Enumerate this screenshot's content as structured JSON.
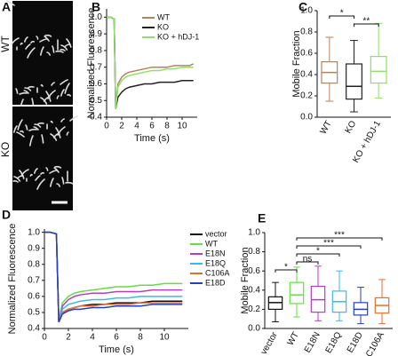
{
  "chart_data": [
    {
      "type": "image",
      "panel": "A",
      "labels": [
        "WT",
        "KO"
      ]
    },
    {
      "type": "line",
      "panel": "B",
      "x_label": "Time (s)",
      "y_label": "Normalized  Fluorescence",
      "x": [
        0,
        0.5,
        1,
        1.2,
        1.5,
        2,
        2.5,
        3,
        4,
        5,
        6,
        7,
        8,
        9,
        10,
        11,
        11.5
      ],
      "xlim": [
        0,
        12
      ],
      "xticks": [
        0,
        2,
        4,
        6,
        8,
        10
      ],
      "ylim": [
        0.4,
        1.05
      ],
      "yticks": [
        0.4,
        0.5,
        0.6,
        0.7,
        0.8,
        0.9,
        {
          "value": 1,
          "label": "1.0"
        }
      ],
      "legend": "upper right",
      "series": [
        {
          "name": "WT",
          "color": "#b5835a",
          "values": [
            1,
            1,
            0.99,
            0.45,
            0.6,
            0.64,
            0.66,
            0.67,
            0.68,
            0.69,
            0.7,
            0.7,
            0.7,
            0.71,
            0.71,
            0.71,
            0.72
          ]
        },
        {
          "name": "KO",
          "color": "#222222",
          "values": [
            1,
            1,
            0.99,
            0.45,
            0.52,
            0.55,
            0.57,
            0.58,
            0.59,
            0.6,
            0.6,
            0.61,
            0.61,
            0.61,
            0.62,
            0.62,
            0.62
          ]
        },
        {
          "name": "KO + hDJ-1",
          "color": "#8ee06a",
          "values": [
            1,
            1,
            0.99,
            0.45,
            0.58,
            0.62,
            0.64,
            0.65,
            0.66,
            0.67,
            0.68,
            0.68,
            0.69,
            0.69,
            0.7,
            0.7,
            0.7
          ]
        }
      ]
    },
    {
      "type": "box",
      "panel": "C",
      "y_label": "Mobile  Fraction",
      "categories": [
        "WT",
        "KO",
        "KO + hDJ-1"
      ],
      "colors": [
        "#b5835a",
        "#222222",
        "#8ee06a"
      ],
      "ylim": [
        0,
        1
      ],
      "yticks": [
        {
          "value": 0,
          "label": "0.0"
        },
        0.2,
        0.4,
        0.6,
        0.8,
        {
          "value": 1,
          "label": "1.0"
        }
      ],
      "boxes": [
        {
          "low": 0.15,
          "q1": 0.32,
          "median": 0.42,
          "q3": 0.52,
          "high": 0.75
        },
        {
          "low": 0.05,
          "q1": 0.17,
          "median": 0.29,
          "q3": 0.5,
          "high": 0.72
        },
        {
          "low": 0.18,
          "q1": 0.32,
          "median": 0.43,
          "q3": 0.57,
          "high": 0.88
        }
      ],
      "significance": [
        {
          "pair": [
            "WT",
            "KO"
          ],
          "label": "*"
        },
        {
          "pair": [
            "KO",
            "KO + hDJ-1"
          ],
          "label": "**"
        }
      ]
    },
    {
      "type": "line",
      "panel": "D",
      "x_label": "Time (s)",
      "y_label": "Normalized Fluorescence",
      "x": [
        0,
        0.5,
        1,
        1.2,
        1.5,
        2,
        2.5,
        3,
        4,
        5,
        6,
        7,
        8,
        9,
        10,
        11,
        11.5
      ],
      "xlim": [
        0,
        12
      ],
      "xticks": [
        0,
        2,
        4,
        6,
        8,
        10
      ],
      "ylim": [
        0.4,
        1.02
      ],
      "yticks": [
        0.4,
        0.5,
        0.6,
        0.7,
        0.8,
        0.9,
        {
          "value": 1,
          "label": "1.0"
        }
      ],
      "legend": "right",
      "series": [
        {
          "name": "vector",
          "color": "#111111",
          "values": [
            1,
            1,
            0.99,
            0.44,
            0.5,
            0.52,
            0.53,
            0.54,
            0.55,
            0.55,
            0.56,
            0.56,
            0.56,
            0.57,
            0.57,
            0.57,
            0.57
          ]
        },
        {
          "name": "WT",
          "color": "#66dd44",
          "values": [
            1,
            1,
            0.99,
            0.44,
            0.56,
            0.6,
            0.62,
            0.63,
            0.64,
            0.65,
            0.66,
            0.66,
            0.67,
            0.67,
            0.68,
            0.68,
            0.68
          ]
        },
        {
          "name": "E18N",
          "color": "#b040c0",
          "values": [
            1,
            1,
            0.99,
            0.44,
            0.54,
            0.58,
            0.6,
            0.61,
            0.62,
            0.62,
            0.63,
            0.63,
            0.63,
            0.64,
            0.64,
            0.64,
            0.64
          ]
        },
        {
          "name": "E18Q",
          "color": "#40b8e0",
          "values": [
            1,
            1,
            0.99,
            0.44,
            0.52,
            0.55,
            0.56,
            0.57,
            0.58,
            0.58,
            0.59,
            0.59,
            0.6,
            0.6,
            0.6,
            0.6,
            0.6
          ]
        },
        {
          "name": "C106A",
          "color": "#e07030",
          "values": [
            1,
            1,
            0.99,
            0.44,
            0.5,
            0.52,
            0.53,
            0.54,
            0.54,
            0.55,
            0.55,
            0.55,
            0.56,
            0.56,
            0.56,
            0.56,
            0.56
          ]
        },
        {
          "name": "E18D",
          "color": "#2040c0",
          "values": [
            1,
            1,
            0.99,
            0.44,
            0.49,
            0.51,
            0.52,
            0.52,
            0.53,
            0.53,
            0.54,
            0.54,
            0.54,
            0.55,
            0.55,
            0.55,
            0.55
          ]
        }
      ]
    },
    {
      "type": "box",
      "panel": "E",
      "y_label": "Mobile Fraction",
      "categories": [
        "vector",
        "WT",
        "E18N",
        "E18Q",
        "E18D",
        "C106A"
      ],
      "colors": [
        "#111111",
        "#66dd44",
        "#b040c0",
        "#40b8e0",
        "#2040c0",
        "#e07030"
      ],
      "ylim": [
        0,
        1
      ],
      "yticks": [
        {
          "value": 0,
          "label": "0.0"
        },
        0.2,
        0.4,
        0.6,
        0.8,
        {
          "value": 1,
          "label": "1.0"
        }
      ],
      "boxes": [
        {
          "low": 0.07,
          "q1": 0.2,
          "median": 0.27,
          "q3": 0.33,
          "high": 0.48
        },
        {
          "low": 0.12,
          "q1": 0.26,
          "median": 0.35,
          "q3": 0.48,
          "high": 0.64
        },
        {
          "low": 0.08,
          "q1": 0.17,
          "median": 0.3,
          "q3": 0.44,
          "high": 0.65
        },
        {
          "low": 0.08,
          "q1": 0.17,
          "median": 0.28,
          "q3": 0.39,
          "high": 0.6
        },
        {
          "low": 0.05,
          "q1": 0.14,
          "median": 0.2,
          "q3": 0.27,
          "high": 0.43
        },
        {
          "low": 0.05,
          "q1": 0.16,
          "median": 0.24,
          "q3": 0.32,
          "high": 0.51
        }
      ],
      "significance": [
        {
          "pair": [
            "WT",
            "C106A"
          ],
          "label": "***"
        },
        {
          "pair": [
            "WT",
            "E18D"
          ],
          "label": "***"
        },
        {
          "pair": [
            "WT",
            "E18Q"
          ],
          "label": "*"
        },
        {
          "pair": [
            "WT",
            "E18N"
          ],
          "label": "ns"
        },
        {
          "pair": [
            "vector",
            "WT"
          ],
          "label": "*"
        }
      ]
    }
  ]
}
